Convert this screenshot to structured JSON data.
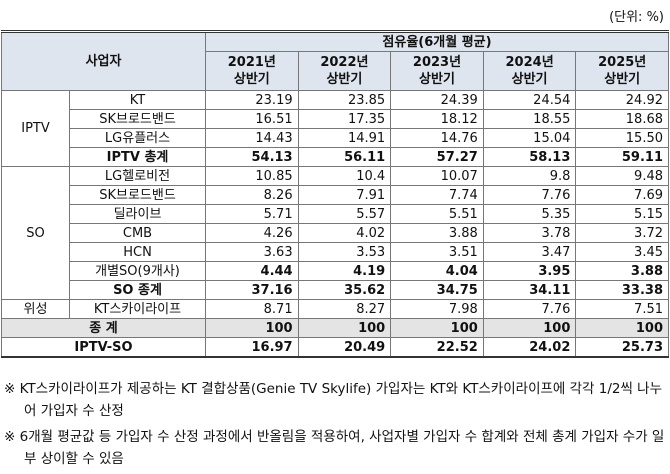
{
  "unit": "(단위: %)",
  "table": {
    "header": {
      "operator": "사업자",
      "share": "점유율(6개월 평균)",
      "years": [
        [
          "2021년",
          "상반기"
        ],
        [
          "2022년",
          "상반기"
        ],
        [
          "2023년",
          "상반기"
        ],
        [
          "2024년",
          "상반기"
        ],
        [
          "2025년",
          "상반기"
        ]
      ]
    },
    "groups": [
      {
        "label": "IPTV",
        "rows": [
          {
            "name": "KT",
            "values": [
              "23.19",
              "23.85",
              "24.39",
              "24.54",
              "24.92"
            ]
          },
          {
            "name": "SK브로드밴드",
            "values": [
              "16.51",
              "17.35",
              "18.12",
              "18.55",
              "18.68"
            ]
          },
          {
            "name": "LG유플러스",
            "values": [
              "14.43",
              "14.91",
              "14.76",
              "15.04",
              "15.50"
            ]
          },
          {
            "name": "IPTV 총계",
            "values": [
              "54.13",
              "56.11",
              "57.27",
              "58.13",
              "59.11"
            ],
            "bold": true
          }
        ]
      },
      {
        "label": "SO",
        "rows": [
          {
            "name": "LG헬로비전",
            "values": [
              "10.85",
              "10.4",
              "10.07",
              "9.8",
              "9.48"
            ]
          },
          {
            "name": "SK브로드밴드",
            "values": [
              "8.26",
              "7.91",
              "7.74",
              "7.76",
              "7.69"
            ]
          },
          {
            "name": "딜라이브",
            "values": [
              "5.71",
              "5.57",
              "5.51",
              "5.35",
              "5.15"
            ]
          },
          {
            "name": "CMB",
            "values": [
              "4.26",
              "4.02",
              "3.88",
              "3.78",
              "3.72"
            ]
          },
          {
            "name": "HCN",
            "values": [
              "3.63",
              "3.53",
              "3.51",
              "3.47",
              "3.45"
            ]
          },
          {
            "name": "개별SO(9개사)",
            "values": [
              "4.44",
              "4.19",
              "4.04",
              "3.95",
              "3.88"
            ],
            "bold_values": true
          },
          {
            "name": "SO 종계",
            "values": [
              "37.16",
              "35.62",
              "34.75",
              "34.11",
              "33.38"
            ],
            "bold": true
          }
        ]
      },
      {
        "label": "위성",
        "rows": [
          {
            "name": "KT스카이라이프",
            "values": [
              "8.71",
              "8.27",
              "7.98",
              "7.76",
              "7.51"
            ]
          }
        ]
      }
    ],
    "totals": [
      {
        "label": "종 계",
        "values": [
          "100",
          "100",
          "100",
          "100",
          "100"
        ],
        "bold": true,
        "gray": true
      },
      {
        "label": "IPTV-SO",
        "values": [
          "16.97",
          "20.49",
          "22.52",
          "24.02",
          "25.73"
        ],
        "bold": true
      }
    ]
  },
  "notes": [
    "※ KT스카이라이프가 제공하는 KT 결합상품(Genie TV Skylife) 가입자는 KT와 KT스카이라이프에 각각 1/2씩 나누어 가입자 수 산정",
    "※ 6개월 평균값 등 가입자 수 산정 과정에서 반올림을 적용하여, 사업자별 가입자 수 합계와 전체 총계 가입자 수가 일부 상이할 수 있음"
  ]
}
